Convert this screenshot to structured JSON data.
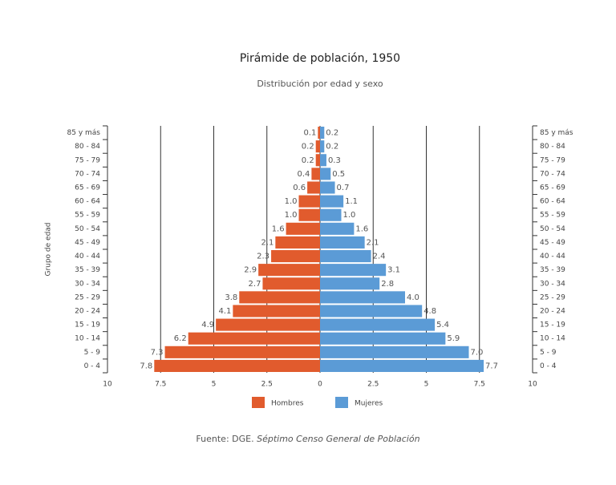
{
  "chart_data": {
    "type": "pyramid",
    "title": "Pirámide de población, 1950",
    "subtitle": "Distribución por edad y sexo",
    "y_label": "Grupo de edad",
    "source_prefix": "Fuente: DGE.",
    "source_title": "Séptimo Censo General de Población",
    "categories": [
      "0 - 4",
      "5 - 9",
      "10 - 14",
      "15 - 19",
      "20 - 24",
      "25 - 29",
      "30 - 34",
      "35 - 39",
      "40 - 44",
      "45 - 49",
      "50 - 54",
      "55 - 59",
      "60 - 64",
      "65 - 69",
      "70 - 74",
      "75 - 79",
      "80 - 84",
      "85 y más"
    ],
    "series": [
      {
        "name": "Hombres",
        "color": "#e15b2d",
        "side": "left",
        "values": [
          7.8,
          7.3,
          6.2,
          4.9,
          4.1,
          3.8,
          2.7,
          2.9,
          2.3,
          2.1,
          1.6,
          1.0,
          1.0,
          0.6,
          0.4,
          0.2,
          0.2,
          0.1
        ],
        "value_labels": [
          "7.8",
          "7.3",
          "6.2",
          "4.9",
          "4.1",
          "3.8",
          "2.7",
          "2.9",
          "2.3",
          "2.1",
          "1.6",
          "1.0",
          "1.0",
          "0.6",
          "0.4",
          "0.2",
          "0.2",
          "0.1"
        ]
      },
      {
        "name": "Mujeres",
        "color": "#5b9bd6",
        "side": "right",
        "values": [
          7.7,
          7.0,
          5.9,
          5.4,
          4.8,
          4.0,
          2.8,
          3.1,
          2.4,
          2.1,
          1.6,
          1.0,
          1.1,
          0.7,
          0.5,
          0.3,
          0.2,
          0.2
        ],
        "value_labels": [
          "7.7",
          "7.0",
          "5.9",
          "5.4",
          "4.8",
          "4.0",
          "2.8",
          "3.1",
          "2.4",
          "2.1",
          "1.6",
          "1.0",
          "1.1",
          "0.7",
          "0.5",
          "0.3",
          "0.2",
          "0.2"
        ]
      }
    ],
    "xlim": [
      -10,
      10
    ],
    "xticks": [
      {
        "value": -10,
        "label": "10"
      },
      {
        "value": -7.5,
        "label": "7.5"
      },
      {
        "value": -5,
        "label": "5"
      },
      {
        "value": -2.5,
        "label": "2.5"
      },
      0,
      2.5,
      5,
      7.5,
      10
    ],
    "grid": true
  }
}
